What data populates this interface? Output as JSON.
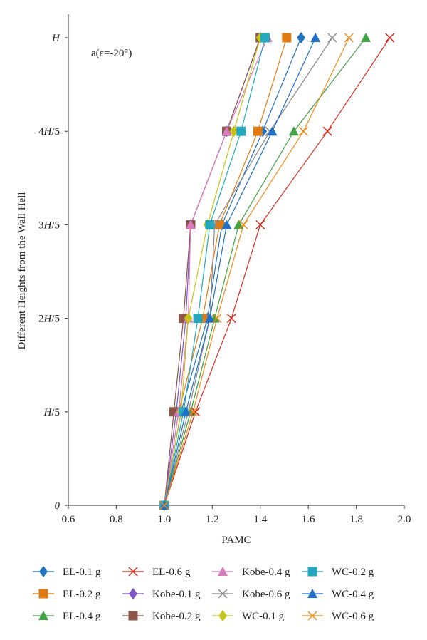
{
  "chart_data": {
    "type": "line",
    "annotation": "a(ε=-20°)",
    "xlabel": "PAMC",
    "ylabel": "Different Heights from the Wall Hell",
    "xlim": [
      0.6,
      2.0
    ],
    "xticks": [
      0.6,
      0.8,
      1.0,
      1.2,
      1.4,
      1.6,
      1.8,
      2.0
    ],
    "xtick_labels": [
      "0.6",
      "0.8",
      "1.0",
      "1.2",
      "1.4",
      "1.6",
      "1.8",
      "2.0"
    ],
    "y_categories": [
      "0",
      "H/5",
      "2H/5",
      "3H/5",
      "4H/5",
      "H"
    ],
    "grid": false,
    "legend_position": "bottom",
    "series": [
      {
        "name": "EL-0.1 g",
        "color": "#2272c2",
        "marker": "diamond",
        "values": [
          1.0,
          1.07,
          1.18,
          1.24,
          1.41,
          1.57
        ]
      },
      {
        "name": "EL-0.2 g",
        "color": "#e07b14",
        "marker": "square",
        "values": [
          1.0,
          1.06,
          1.16,
          1.23,
          1.39,
          1.51
        ]
      },
      {
        "name": "EL-0.4 g",
        "color": "#3fa243",
        "marker": "triangle",
        "values": [
          1.0,
          1.11,
          1.21,
          1.31,
          1.54,
          1.84
        ]
      },
      {
        "name": "EL-0.6 g",
        "color": "#d62a1c",
        "marker": "x",
        "values": [
          1.0,
          1.13,
          1.28,
          1.4,
          1.68,
          1.94
        ]
      },
      {
        "name": "Kobe-0.1 g",
        "color": "#7e57c2",
        "marker": "diamond",
        "values": [
          1.0,
          1.05,
          1.09,
          1.11,
          1.26,
          1.4
        ]
      },
      {
        "name": "Kobe-0.2 g",
        "color": "#8b5548",
        "marker": "square",
        "values": [
          1.0,
          1.04,
          1.08,
          1.11,
          1.26,
          1.4
        ]
      },
      {
        "name": "Kobe-0.4 g",
        "color": "#d97bbf",
        "marker": "triangle",
        "values": [
          1.0,
          1.06,
          1.1,
          1.11,
          1.26,
          1.43
        ]
      },
      {
        "name": "Kobe-0.6 g",
        "color": "#888888",
        "marker": "x",
        "values": [
          1.0,
          1.1,
          1.19,
          1.21,
          1.44,
          1.7
        ]
      },
      {
        "name": "WC-0.1 g",
        "color": "#c6c41a",
        "marker": "diamond",
        "values": [
          1.0,
          1.07,
          1.1,
          1.18,
          1.29,
          1.4
        ]
      },
      {
        "name": "WC-0.2 g",
        "color": "#25a8bd",
        "marker": "square",
        "values": [
          1.0,
          1.08,
          1.14,
          1.19,
          1.32,
          1.42
        ]
      },
      {
        "name": "WC-0.4 g",
        "color": "#1f6fc6",
        "marker": "triangle",
        "values": [
          1.0,
          1.09,
          1.19,
          1.26,
          1.45,
          1.63
        ]
      },
      {
        "name": "WC-0.6 g",
        "color": "#ef8a1b",
        "marker": "x",
        "values": [
          1.0,
          1.12,
          1.22,
          1.33,
          1.58,
          1.77
        ]
      }
    ]
  }
}
